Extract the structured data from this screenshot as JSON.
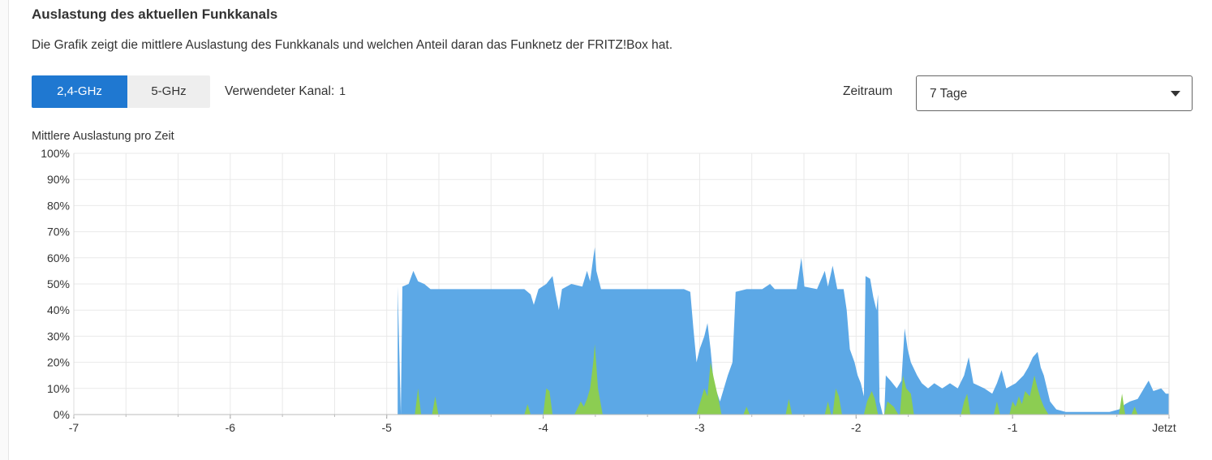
{
  "section": {
    "title": "Auslastung des aktuellen Funkkanals",
    "description": "Die Grafik zeigt die mittlere Auslastung des Funkkanals und welchen Anteil daran das Funknetz der FRITZ!Box hat."
  },
  "band_tabs": [
    {
      "label": "2,4-GHz",
      "active": true
    },
    {
      "label": "5-GHz",
      "active": false
    }
  ],
  "channel": {
    "label": "Verwendeter Kanal:",
    "value": "1"
  },
  "period": {
    "label": "Zeitraum",
    "selected": "7 Tage"
  },
  "colors": {
    "total": "#5ca8e6",
    "own": "#8ccd52",
    "active_tab": "#1f78d1",
    "grid": "#e9e9e9"
  },
  "chart_data": {
    "type": "area",
    "title": "Mittlere Auslastung pro Zeit",
    "ylim": [
      0,
      100
    ],
    "xlim": [
      -7,
      0
    ],
    "y_ticks": [
      "0%",
      "10%",
      "20%",
      "30%",
      "40%",
      "50%",
      "60%",
      "70%",
      "80%",
      "90%",
      "100%"
    ],
    "x_ticks": [
      {
        "value": -7,
        "label": "-7"
      },
      {
        "value": -6,
        "label": "-6"
      },
      {
        "value": -5,
        "label": "-5"
      },
      {
        "value": -4,
        "label": "-4"
      },
      {
        "value": -3,
        "label": "-3"
      },
      {
        "value": -2,
        "label": "-2"
      },
      {
        "value": -1,
        "label": "-1"
      },
      {
        "value": 0,
        "label": "Jetzt"
      }
    ],
    "grid": true,
    "series": [
      {
        "key": "total",
        "points": [
          [
            -4.93,
            0
          ],
          [
            -4.93,
            49
          ],
          [
            -4.91,
            0
          ],
          [
            -4.9,
            49
          ],
          [
            -4.86,
            50
          ],
          [
            -4.83,
            55
          ],
          [
            -4.8,
            51
          ],
          [
            -4.76,
            50
          ],
          [
            -4.72,
            48
          ],
          [
            -4.65,
            48
          ],
          [
            -4.55,
            48
          ],
          [
            -4.45,
            48
          ],
          [
            -4.35,
            48
          ],
          [
            -4.25,
            48
          ],
          [
            -4.12,
            48
          ],
          [
            -4.08,
            46
          ],
          [
            -4.06,
            42
          ],
          [
            -4.03,
            48
          ],
          [
            -3.98,
            50
          ],
          [
            -3.94,
            53
          ],
          [
            -3.92,
            46
          ],
          [
            -3.9,
            40
          ],
          [
            -3.88,
            48
          ],
          [
            -3.82,
            50
          ],
          [
            -3.75,
            49
          ],
          [
            -3.72,
            55
          ],
          [
            -3.7,
            51
          ],
          [
            -3.68,
            60
          ],
          [
            -3.67,
            64
          ],
          [
            -3.66,
            55
          ],
          [
            -3.63,
            48
          ],
          [
            -3.5,
            48
          ],
          [
            -3.35,
            48
          ],
          [
            -3.2,
            48
          ],
          [
            -3.1,
            48
          ],
          [
            -3.06,
            47
          ],
          [
            -3.04,
            33
          ],
          [
            -3.02,
            20
          ],
          [
            -3.0,
            25
          ],
          [
            -2.97,
            30
          ],
          [
            -2.95,
            35
          ],
          [
            -2.93,
            25
          ],
          [
            -2.91,
            12
          ],
          [
            -2.87,
            5
          ],
          [
            -2.82,
            15
          ],
          [
            -2.79,
            20
          ],
          [
            -2.77,
            47
          ],
          [
            -2.7,
            48
          ],
          [
            -2.6,
            48
          ],
          [
            -2.55,
            50
          ],
          [
            -2.52,
            48
          ],
          [
            -2.45,
            48
          ],
          [
            -2.38,
            48
          ],
          [
            -2.35,
            60
          ],
          [
            -2.33,
            49
          ],
          [
            -2.25,
            48
          ],
          [
            -2.2,
            55
          ],
          [
            -2.18,
            49
          ],
          [
            -2.15,
            57
          ],
          [
            -2.12,
            48
          ],
          [
            -2.08,
            48
          ],
          [
            -2.06,
            40
          ],
          [
            -2.04,
            25
          ],
          [
            -2.01,
            20
          ],
          [
            -1.99,
            15
          ],
          [
            -1.97,
            12
          ],
          [
            -1.95,
            7
          ],
          [
            -1.94,
            53
          ],
          [
            -1.91,
            52
          ],
          [
            -1.89,
            45
          ],
          [
            -1.87,
            40
          ],
          [
            -1.86,
            46
          ],
          [
            -1.85,
            5
          ],
          [
            -1.83,
            0
          ],
          [
            -1.82,
            0
          ],
          [
            -1.81,
            15
          ],
          [
            -1.78,
            13
          ],
          [
            -1.74,
            10
          ],
          [
            -1.71,
            13
          ],
          [
            -1.69,
            33
          ],
          [
            -1.67,
            25
          ],
          [
            -1.65,
            20
          ],
          [
            -1.61,
            15
          ],
          [
            -1.58,
            12
          ],
          [
            -1.54,
            10
          ],
          [
            -1.5,
            12
          ],
          [
            -1.45,
            10
          ],
          [
            -1.4,
            12
          ],
          [
            -1.35,
            10
          ],
          [
            -1.31,
            15
          ],
          [
            -1.28,
            22
          ],
          [
            -1.25,
            12
          ],
          [
            -1.18,
            10
          ],
          [
            -1.13,
            8
          ],
          [
            -1.1,
            12
          ],
          [
            -1.07,
            17
          ],
          [
            -1.04,
            10
          ],
          [
            -0.98,
            12
          ],
          [
            -0.93,
            15
          ],
          [
            -0.9,
            18
          ],
          [
            -0.87,
            22
          ],
          [
            -0.84,
            24
          ],
          [
            -0.82,
            18
          ],
          [
            -0.8,
            15
          ],
          [
            -0.76,
            5
          ],
          [
            -0.72,
            2
          ],
          [
            -0.66,
            1
          ],
          [
            -0.56,
            1
          ],
          [
            -0.46,
            1
          ],
          [
            -0.38,
            1
          ],
          [
            -0.32,
            2
          ],
          [
            -0.28,
            4
          ],
          [
            -0.25,
            5
          ],
          [
            -0.2,
            6
          ],
          [
            -0.16,
            10
          ],
          [
            -0.13,
            13
          ],
          [
            -0.1,
            9
          ],
          [
            -0.05,
            10
          ],
          [
            -0.02,
            8
          ],
          [
            0.0,
            8
          ],
          [
            0.0,
            0
          ]
        ]
      },
      {
        "key": "own",
        "points": [
          [
            -4.82,
            0
          ],
          [
            -4.8,
            10
          ],
          [
            -4.78,
            0
          ],
          [
            -4.71,
            0
          ],
          [
            -4.69,
            7
          ],
          [
            -4.67,
            0
          ],
          [
            -4.12,
            0
          ],
          [
            -4.1,
            4
          ],
          [
            -4.08,
            0
          ],
          [
            -4.0,
            0
          ],
          [
            -3.98,
            10
          ],
          [
            -3.96,
            9
          ],
          [
            -3.94,
            0
          ],
          [
            -3.8,
            0
          ],
          [
            -3.76,
            5
          ],
          [
            -3.74,
            3
          ],
          [
            -3.72,
            6
          ],
          [
            -3.7,
            10
          ],
          [
            -3.68,
            20
          ],
          [
            -3.67,
            27
          ],
          [
            -3.65,
            10
          ],
          [
            -3.62,
            0
          ],
          [
            -3.02,
            0
          ],
          [
            -3.0,
            4
          ],
          [
            -2.97,
            10
          ],
          [
            -2.95,
            7
          ],
          [
            -2.93,
            20
          ],
          [
            -2.91,
            14
          ],
          [
            -2.88,
            6
          ],
          [
            -2.86,
            0
          ],
          [
            -2.72,
            0
          ],
          [
            -2.7,
            3
          ],
          [
            -2.68,
            0
          ],
          [
            -2.45,
            0
          ],
          [
            -2.43,
            6
          ],
          [
            -2.41,
            0
          ],
          [
            -2.2,
            0
          ],
          [
            -2.18,
            5
          ],
          [
            -2.16,
            0
          ],
          [
            -2.15,
            0
          ],
          [
            -2.13,
            10
          ],
          [
            -2.11,
            7
          ],
          [
            -2.09,
            0
          ],
          [
            -1.95,
            0
          ],
          [
            -1.93,
            5
          ],
          [
            -1.9,
            9
          ],
          [
            -1.88,
            6
          ],
          [
            -1.86,
            0
          ],
          [
            -1.82,
            0
          ],
          [
            -1.8,
            5
          ],
          [
            -1.76,
            3
          ],
          [
            -1.73,
            0
          ],
          [
            -1.72,
            0
          ],
          [
            -1.7,
            15
          ],
          [
            -1.68,
            10
          ],
          [
            -1.65,
            8
          ],
          [
            -1.63,
            0
          ],
          [
            -1.33,
            0
          ],
          [
            -1.31,
            5
          ],
          [
            -1.29,
            8
          ],
          [
            -1.27,
            0
          ],
          [
            -1.12,
            0
          ],
          [
            -1.1,
            5
          ],
          [
            -1.08,
            0
          ],
          [
            -1.02,
            0
          ],
          [
            -1.0,
            5
          ],
          [
            -0.98,
            3
          ],
          [
            -0.96,
            7
          ],
          [
            -0.94,
            4
          ],
          [
            -0.92,
            9
          ],
          [
            -0.89,
            7
          ],
          [
            -0.86,
            15
          ],
          [
            -0.84,
            10
          ],
          [
            -0.82,
            6
          ],
          [
            -0.8,
            3
          ],
          [
            -0.77,
            0
          ],
          [
            -0.32,
            0
          ],
          [
            -0.3,
            8
          ],
          [
            -0.28,
            0
          ],
          [
            -0.24,
            0
          ],
          [
            -0.22,
            3
          ],
          [
            -0.2,
            0
          ]
        ]
      }
    ]
  }
}
